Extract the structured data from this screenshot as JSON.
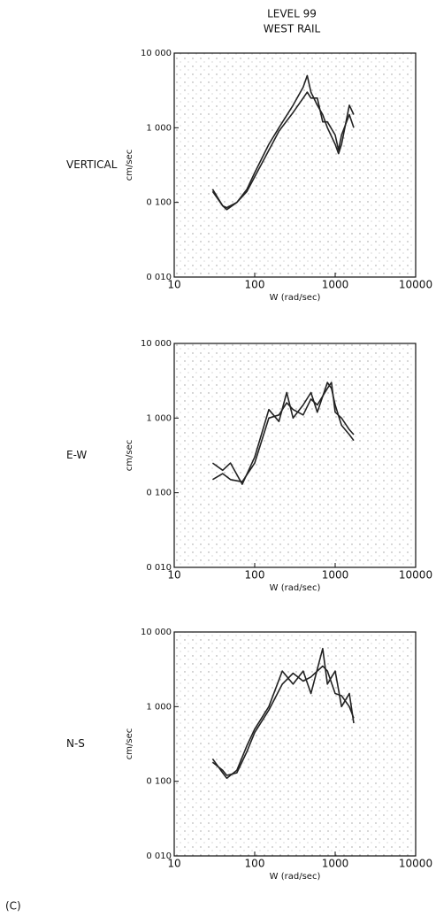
{
  "title": "LEVEL 99",
  "subtitle": "WEST RAIL",
  "panel_label": "(C)",
  "chart_data": [
    {
      "type": "line",
      "row_label": "VERTICAL",
      "xlabel": "W (rad/sec)",
      "ylabel": "cm/sec",
      "xscale": "log",
      "yscale": "log",
      "xlim": [
        10,
        10000
      ],
      "ylim": [
        0.01,
        10
      ],
      "xticks": [
        10,
        100,
        1000,
        10000
      ],
      "yticks": [
        {
          "value": 0.01,
          "label": "0 010"
        },
        {
          "value": 0.1,
          "label": "0 100"
        },
        {
          "value": 1,
          "label": "1 000"
        },
        {
          "value": 10,
          "label": "10 000"
        }
      ],
      "series": [
        {
          "color": "#222",
          "x": [
            30,
            40,
            45,
            60,
            80,
            100,
            150,
            200,
            300,
            400,
            450,
            500,
            600,
            700,
            800,
            1000,
            1100,
            1200,
            1500,
            1700
          ],
          "values": [
            0.15,
            0.09,
            0.08,
            0.1,
            0.15,
            0.25,
            0.6,
            1.0,
            2.0,
            3.5,
            5.0,
            3.0,
            2.0,
            1.5,
            1.0,
            0.6,
            0.45,
            0.6,
            2.0,
            1.5
          ]
        },
        {
          "color": "#222",
          "x": [
            30,
            40,
            45,
            60,
            80,
            100,
            150,
            200,
            300,
            400,
            450,
            500,
            600,
            700,
            800,
            1000,
            1100,
            1200,
            1500,
            1700
          ],
          "values": [
            0.14,
            0.09,
            0.085,
            0.1,
            0.14,
            0.22,
            0.5,
            0.9,
            1.6,
            2.5,
            3.0,
            2.5,
            2.5,
            1.2,
            1.2,
            0.8,
            0.5,
            0.8,
            1.5,
            1.0
          ]
        }
      ]
    },
    {
      "type": "line",
      "row_label": "E-W",
      "xlabel": "W (rad/sec)",
      "ylabel": "cm/sec",
      "xscale": "log",
      "yscale": "log",
      "xlim": [
        10,
        10000
      ],
      "ylim": [
        0.01,
        10
      ],
      "xticks": [
        10,
        100,
        1000,
        10000
      ],
      "yticks": [
        {
          "value": 0.01,
          "label": "0 010"
        },
        {
          "value": 0.1,
          "label": "0 100"
        },
        {
          "value": 1,
          "label": "1 000"
        },
        {
          "value": 10,
          "label": "10 000"
        }
      ],
      "series": [
        {
          "color": "#222",
          "x": [
            30,
            40,
            50,
            70,
            100,
            150,
            200,
            250,
            300,
            400,
            500,
            600,
            800,
            900,
            1000,
            1200,
            1500,
            1700
          ],
          "values": [
            0.25,
            0.2,
            0.25,
            0.13,
            0.3,
            1.3,
            0.9,
            2.2,
            1.0,
            1.5,
            2.2,
            1.2,
            3.0,
            2.5,
            1.5,
            0.8,
            0.6,
            0.5
          ]
        },
        {
          "color": "#222",
          "x": [
            30,
            40,
            50,
            70,
            100,
            150,
            200,
            250,
            300,
            400,
            500,
            600,
            800,
            900,
            1000,
            1200,
            1500,
            1700
          ],
          "values": [
            0.15,
            0.18,
            0.15,
            0.14,
            0.25,
            1.0,
            1.1,
            1.6,
            1.3,
            1.1,
            1.8,
            1.5,
            2.5,
            3.0,
            1.2,
            1.0,
            0.7,
            0.6
          ]
        }
      ]
    },
    {
      "type": "line",
      "row_label": "N-S",
      "xlabel": "W (rad/sec)",
      "ylabel": "cm/sec",
      "xscale": "log",
      "yscale": "log",
      "xlim": [
        10,
        10000
      ],
      "ylim": [
        0.01,
        10
      ],
      "xticks": [
        10,
        100,
        1000,
        10000
      ],
      "yticks": [
        {
          "value": 0.01,
          "label": "0 010"
        },
        {
          "value": 0.1,
          "label": "0 100"
        },
        {
          "value": 1,
          "label": "1 000"
        },
        {
          "value": 10,
          "label": "10 000"
        }
      ],
      "series": [
        {
          "color": "#222",
          "x": [
            30,
            40,
            45,
            60,
            80,
            100,
            150,
            220,
            300,
            400,
            500,
            700,
            800,
            1000,
            1200,
            1500,
            1700
          ],
          "values": [
            0.2,
            0.13,
            0.11,
            0.14,
            0.3,
            0.5,
            1.0,
            3.0,
            2.0,
            3.0,
            1.5,
            6.0,
            2.0,
            3.0,
            1.0,
            1.5,
            0.6
          ]
        },
        {
          "color": "#222",
          "x": [
            30,
            40,
            45,
            60,
            80,
            100,
            150,
            220,
            300,
            400,
            500,
            700,
            800,
            1000,
            1200,
            1500,
            1700
          ],
          "values": [
            0.18,
            0.14,
            0.12,
            0.13,
            0.25,
            0.45,
            0.9,
            2.0,
            2.8,
            2.2,
            2.5,
            3.5,
            3.0,
            1.5,
            1.4,
            1.0,
            0.7
          ]
        }
      ]
    }
  ]
}
